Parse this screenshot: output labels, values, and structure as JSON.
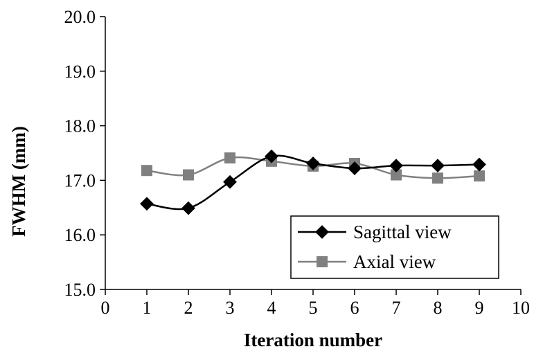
{
  "chart_data": {
    "type": "line",
    "title": "",
    "xlabel": "Iteration number",
    "ylabel": "FWHM (mm)",
    "xlim": [
      0,
      10
    ],
    "ylim": [
      15.0,
      20.0
    ],
    "x_ticks": [
      "0",
      "1",
      "2",
      "3",
      "4",
      "5",
      "6",
      "7",
      "8",
      "9",
      "10"
    ],
    "y_ticks": [
      "15.0",
      "16.0",
      "17.0",
      "18.0",
      "19.0",
      "20.0"
    ],
    "x": [
      1,
      2,
      3,
      4,
      5,
      6,
      7,
      8,
      9
    ],
    "grid": false,
    "legend_position": "bottom-right",
    "series": [
      {
        "name": "Sagittal view",
        "marker": "diamond",
        "color": "#000000",
        "values": [
          16.57,
          16.49,
          16.97,
          17.44,
          17.31,
          17.22,
          17.27,
          17.27,
          17.29
        ]
      },
      {
        "name": "Axial view",
        "marker": "square",
        "color": "#808080",
        "values": [
          17.18,
          17.1,
          17.41,
          17.35,
          17.26,
          17.31,
          17.1,
          17.04,
          17.08
        ]
      }
    ]
  }
}
